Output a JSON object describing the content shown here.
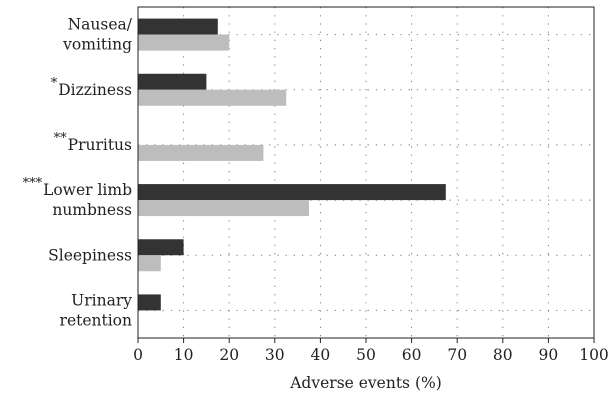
{
  "chart_data": {
    "type": "bar",
    "orientation": "horizontal",
    "categories": [
      {
        "lines": [
          "Nausea/",
          "vomiting"
        ],
        "marker": ""
      },
      {
        "lines": [
          "Dizziness"
        ],
        "marker": "*"
      },
      {
        "lines": [
          "Pruritus"
        ],
        "marker": "**"
      },
      {
        "lines": [
          "Lower limb",
          "numbness"
        ],
        "marker": "***"
      },
      {
        "lines": [
          "Sleepiness"
        ],
        "marker": ""
      },
      {
        "lines": [
          "Urinary",
          "retention"
        ],
        "marker": ""
      }
    ],
    "series": [
      {
        "values": [
          17.5,
          15,
          0,
          67.5,
          10,
          5
        ],
        "color": "#333333"
      },
      {
        "values": [
          20,
          32.5,
          27.5,
          37.5,
          5,
          0
        ],
        "color": "#bdbdbd"
      }
    ],
    "xlabel": "Adverse events (%)",
    "xlim": [
      0,
      100
    ],
    "xticks": [
      0,
      10,
      20,
      30,
      40,
      50,
      60,
      70,
      80,
      90,
      100
    ],
    "grid": "dotted"
  }
}
